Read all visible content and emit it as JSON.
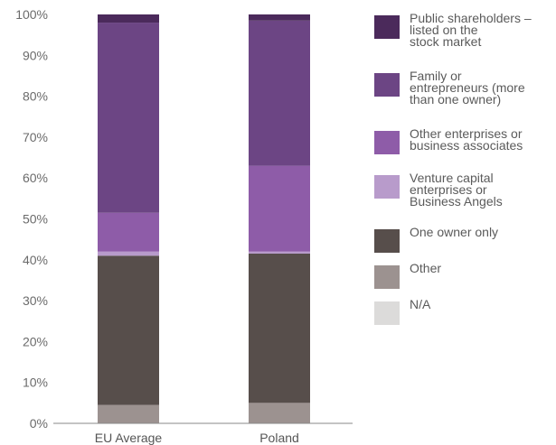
{
  "chart_data": {
    "type": "bar",
    "stacked": true,
    "categories": [
      "EU Average",
      "Poland"
    ],
    "ylim": [
      0,
      100
    ],
    "yticks": [
      "0%",
      "10%",
      "20%",
      "30%",
      "40%",
      "50%",
      "60%",
      "70%",
      "80%",
      "90%",
      "100%"
    ],
    "xlabel": "",
    "ylabel": "",
    "legend_position": "right",
    "grid": false,
    "series": [
      {
        "name": "Public shareholders – listed on the stock market",
        "color": "#4b2a5b",
        "values": [
          2,
          1.5
        ]
      },
      {
        "name": "Family or entrepreneurs (more than one owner)",
        "color": "#6c4584",
        "values": [
          46.5,
          35.5
        ]
      },
      {
        "name": "Other enterprises or business associates",
        "color": "#8e5ca8",
        "values": [
          9.5,
          21
        ]
      },
      {
        "name": "Venture capital enterprises or Business Angels",
        "color": "#b89bcb",
        "values": [
          1,
          0.5
        ]
      },
      {
        "name": "One owner only",
        "color": "#574e4b",
        "values": [
          36.5,
          36.5
        ]
      },
      {
        "name": "Other",
        "color": "#9c9290",
        "values": [
          4.5,
          5
        ]
      },
      {
        "name": "N/A",
        "color": "#dcdbda",
        "values": [
          0,
          0
        ]
      }
    ]
  },
  "legend": {
    "items": [
      {
        "lines": [
          "Public shareholders –",
          "listed on the",
          "stock market"
        ]
      },
      {
        "lines": [
          "Family or",
          "entrepreneurs (more",
          "than one owner)"
        ]
      },
      {
        "lines": [
          "Other enterprises or",
          "business associates"
        ]
      },
      {
        "lines": [
          "Venture capital",
          "enterprises or",
          "Business Angels"
        ]
      },
      {
        "lines": [
          "One owner only"
        ]
      },
      {
        "lines": [
          "Other"
        ]
      },
      {
        "lines": [
          "N/A"
        ]
      }
    ]
  }
}
